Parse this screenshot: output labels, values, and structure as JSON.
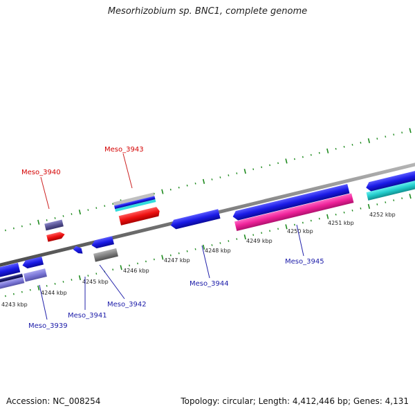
{
  "title": "Mesorhizobium sp. BNC1, complete genome",
  "accession_text": "Accession: NC_008254",
  "summary_text": "Topology: circular; Length: 4,412,446 bp; Genes: 4,131",
  "colors": {
    "backbone": "#7a7a7a",
    "tick": "#1e8a1e",
    "label_forward": "#d40000",
    "label_reverse": "#1a1aa8",
    "leader_forward": "#cc2020",
    "leader_reverse": "#2020aa"
  },
  "ticks": [
    {
      "label": "4243 kbp"
    },
    {
      "label": "4244 kbp"
    },
    {
      "label": "4245 kbp"
    },
    {
      "label": "4246 kbp"
    },
    {
      "label": "4247 kbp"
    },
    {
      "label": "4248 kbp"
    },
    {
      "label": "4249 kbp"
    },
    {
      "label": "4250 kbp"
    },
    {
      "label": "4251 kbp"
    },
    {
      "label": "4252 kbp"
    }
  ],
  "gene_labels": [
    {
      "text": "Meso_3940",
      "strand": "forward"
    },
    {
      "text": "Meso_3943",
      "strand": "forward"
    },
    {
      "text": "Meso_3939",
      "strand": "reverse"
    },
    {
      "text": "Meso_3941",
      "strand": "reverse"
    },
    {
      "text": "Meso_3942",
      "strand": "reverse"
    },
    {
      "text": "Meso_3944",
      "strand": "reverse"
    },
    {
      "text": "Meso_3945",
      "strand": "reverse"
    }
  ]
}
